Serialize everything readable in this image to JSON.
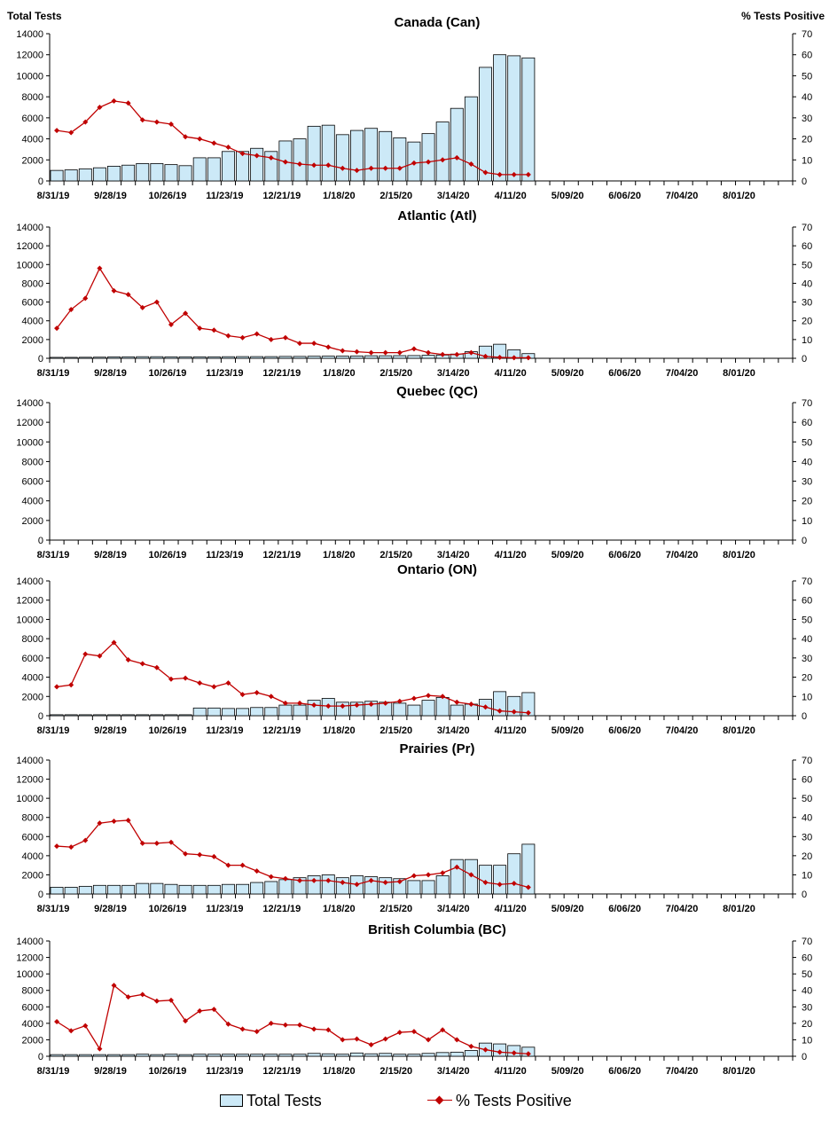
{
  "header": {
    "left_axis_title": "Total Tests",
    "right_axis_title": "% Tests Positive"
  },
  "legend": {
    "tests_label": "Total Tests",
    "positive_label": "% Tests Positive"
  },
  "colors": {
    "bar_fill": "#cce9f7",
    "line": "#c00000"
  },
  "chart_data": [
    {
      "type": "bar+line",
      "title": "Canada (Can)",
      "x_tick_labels": [
        "8/31/19",
        "9/28/19",
        "10/26/19",
        "11/23/19",
        "12/21/19",
        "1/18/20",
        "2/15/20",
        "3/14/20",
        "4/11/20",
        "5/09/20",
        "6/06/20",
        "7/04/20",
        "8/01/20"
      ],
      "y_left_ticks": [
        0,
        2000,
        4000,
        6000,
        8000,
        10000,
        12000,
        14000
      ],
      "y_right_ticks": [
        0,
        10,
        20,
        30,
        40,
        50,
        60,
        70
      ],
      "ylim_left": [
        0,
        14000
      ],
      "ylim_right": [
        0,
        70
      ],
      "total_tests": [
        1000,
        1050,
        1150,
        1250,
        1400,
        1500,
        1650,
        1650,
        1550,
        1450,
        2200,
        2200,
        2800,
        2800,
        3100,
        2800,
        3800,
        4000,
        5200,
        5300,
        4400,
        4800,
        5000,
        4700,
        4100,
        3700,
        4500,
        5600,
        6900,
        8000,
        10800,
        12000,
        11900,
        11700
      ],
      "pct_positive": [
        24,
        23,
        28,
        35,
        38,
        37,
        29,
        28,
        27,
        21,
        20,
        18,
        16,
        13,
        12,
        11,
        9,
        8,
        7.5,
        7.5,
        6,
        5,
        6,
        6,
        6,
        8.5,
        9,
        10,
        11,
        8,
        4,
        3,
        3,
        3
      ]
    },
    {
      "type": "bar+line",
      "title": "Atlantic (Atl)",
      "x_tick_labels": [
        "8/31/19",
        "9/28/19",
        "10/26/19",
        "11/23/19",
        "12/21/19",
        "1/18/20",
        "2/15/20",
        "3/14/20",
        "4/11/20",
        "5/09/20",
        "6/06/20",
        "7/04/20",
        "8/01/20"
      ],
      "y_left_ticks": [
        0,
        2000,
        4000,
        6000,
        8000,
        10000,
        12000,
        14000
      ],
      "y_right_ticks": [
        0,
        10,
        20,
        30,
        40,
        50,
        60,
        70
      ],
      "ylim_left": [
        0,
        14000
      ],
      "ylim_right": [
        0,
        70
      ],
      "total_tests": [
        100,
        100,
        110,
        120,
        150,
        160,
        170,
        170,
        160,
        160,
        160,
        160,
        170,
        180,
        180,
        180,
        200,
        200,
        220,
        230,
        230,
        250,
        270,
        270,
        280,
        290,
        320,
        350,
        450,
        700,
        1300,
        1500,
        900,
        500
      ],
      "pct_positive": [
        16,
        26,
        32,
        48,
        36,
        34,
        27,
        30,
        18,
        24,
        16,
        15,
        12,
        11,
        13,
        10,
        11,
        8,
        8,
        6,
        4,
        3.5,
        3,
        3,
        3,
        5,
        3,
        2,
        2,
        3,
        1,
        0.5,
        0.3,
        0.3
      ]
    },
    {
      "type": "bar+line",
      "title": "Quebec (QC)",
      "x_tick_labels": [
        "8/31/19",
        "9/28/19",
        "10/26/19",
        "11/23/19",
        "12/21/19",
        "1/18/20",
        "2/15/20",
        "3/14/20",
        "4/11/20",
        "5/09/20",
        "6/06/20",
        "7/04/20",
        "8/01/20"
      ],
      "y_left_ticks": [
        0,
        2000,
        4000,
        6000,
        8000,
        10000,
        12000,
        14000
      ],
      "y_right_ticks": [
        0,
        10,
        20,
        30,
        40,
        50,
        60,
        70
      ],
      "ylim_left": [
        0,
        14000
      ],
      "ylim_right": [
        0,
        70
      ],
      "total_tests": [],
      "pct_positive": []
    },
    {
      "type": "bar+line",
      "title": "Ontario (ON)",
      "x_tick_labels": [
        "8/31/19",
        "9/28/19",
        "10/26/19",
        "11/23/19",
        "12/21/19",
        "1/18/20",
        "2/15/20",
        "3/14/20",
        "4/11/20",
        "5/09/20",
        "6/06/20",
        "7/04/20",
        "8/01/20"
      ],
      "y_left_ticks": [
        0,
        2000,
        4000,
        6000,
        8000,
        10000,
        12000,
        14000
      ],
      "y_right_ticks": [
        0,
        10,
        20,
        30,
        40,
        50,
        60,
        70
      ],
      "ylim_left": [
        0,
        14000
      ],
      "ylim_right": [
        0,
        70
      ],
      "total_tests": [
        100,
        100,
        100,
        100,
        100,
        100,
        100,
        100,
        100,
        100,
        800,
        800,
        750,
        750,
        850,
        850,
        1100,
        1100,
        1600,
        1800,
        1400,
        1400,
        1500,
        1400,
        1300,
        1100,
        1600,
        1900,
        1100,
        1200,
        1700,
        2500,
        2000,
        2400
      ],
      "pct_positive": [
        15,
        16,
        32,
        31,
        38,
        29,
        27,
        25,
        19,
        19.5,
        17,
        15,
        17,
        11,
        12,
        10,
        6.5,
        6.5,
        5.5,
        5,
        5,
        5.5,
        6,
        6.5,
        7.5,
        9,
        10.5,
        10,
        7,
        6,
        4.5,
        2.5,
        2,
        1.5
      ]
    },
    {
      "type": "bar+line",
      "title": "Prairies (Pr)",
      "x_tick_labels": [
        "8/31/19",
        "9/28/19",
        "10/26/19",
        "11/23/19",
        "12/21/19",
        "1/18/20",
        "2/15/20",
        "3/14/20",
        "4/11/20",
        "5/09/20",
        "6/06/20",
        "7/04/20",
        "8/01/20"
      ],
      "y_left_ticks": [
        0,
        2000,
        4000,
        6000,
        8000,
        10000,
        12000,
        14000
      ],
      "y_right_ticks": [
        0,
        10,
        20,
        30,
        40,
        50,
        60,
        70
      ],
      "ylim_left": [
        0,
        14000
      ],
      "ylim_right": [
        0,
        70
      ],
      "total_tests": [
        700,
        700,
        800,
        900,
        900,
        900,
        1100,
        1100,
        1000,
        900,
        900,
        900,
        1000,
        1000,
        1200,
        1300,
        1500,
        1700,
        1900,
        2000,
        1700,
        1900,
        1800,
        1700,
        1600,
        1400,
        1400,
        1900,
        3600,
        3600,
        3000,
        3000,
        4200,
        5200
      ],
      "pct_positive": [
        25,
        24.5,
        28,
        37,
        38,
        38.5,
        26.5,
        26.5,
        27,
        21,
        20.5,
        19.5,
        15,
        15,
        12,
        9,
        8,
        7,
        7,
        7,
        6,
        5,
        7,
        6,
        6.5,
        9.5,
        10,
        11,
        14,
        10,
        6,
        5,
        5.5,
        3.5
      ]
    },
    {
      "type": "bar+line",
      "title": "British Columbia (BC)",
      "x_tick_labels": [
        "8/31/19",
        "9/28/19",
        "10/26/19",
        "11/23/19",
        "12/21/19",
        "1/18/20",
        "2/15/20",
        "3/14/20",
        "4/11/20",
        "5/09/20",
        "6/06/20",
        "7/04/20",
        "8/01/20"
      ],
      "y_left_ticks": [
        0,
        2000,
        4000,
        6000,
        8000,
        10000,
        12000,
        14000
      ],
      "y_right_ticks": [
        0,
        10,
        20,
        30,
        40,
        50,
        60,
        70
      ],
      "ylim_left": [
        0,
        14000
      ],
      "ylim_right": [
        0,
        70
      ],
      "total_tests": [
        200,
        200,
        200,
        200,
        200,
        200,
        250,
        200,
        250,
        200,
        250,
        250,
        250,
        250,
        250,
        250,
        250,
        250,
        350,
        300,
        250,
        400,
        300,
        350,
        250,
        250,
        350,
        450,
        500,
        700,
        1600,
        1500,
        1300,
        1100
      ],
      "pct_positive": [
        21,
        15.5,
        18.5,
        4.5,
        43,
        36,
        37.5,
        33.5,
        34,
        21.5,
        27.5,
        28.5,
        19.5,
        16.5,
        15,
        20,
        19,
        19,
        16.5,
        16,
        10,
        10.5,
        7,
        10.5,
        14.5,
        15,
        10,
        16,
        10,
        6,
        4,
        2.5,
        2,
        1.5
      ]
    }
  ]
}
